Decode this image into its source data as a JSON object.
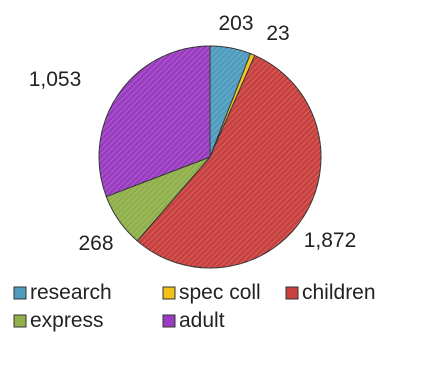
{
  "chart_data": {
    "type": "pie",
    "categories": [
      "research",
      "spec coll",
      "children",
      "express",
      "adult"
    ],
    "values": [
      203,
      23,
      1872,
      268,
      1053
    ],
    "data_labels": [
      "203",
      "23",
      "1,872",
      "268",
      "1,053"
    ],
    "colors": [
      "#4f9cbf",
      "#f2c21b",
      "#c8413f",
      "#8fb04a",
      "#9a3cc1"
    ],
    "legend_position": "bottom",
    "start_angle_deg": 0,
    "direction": "clockwise"
  }
}
